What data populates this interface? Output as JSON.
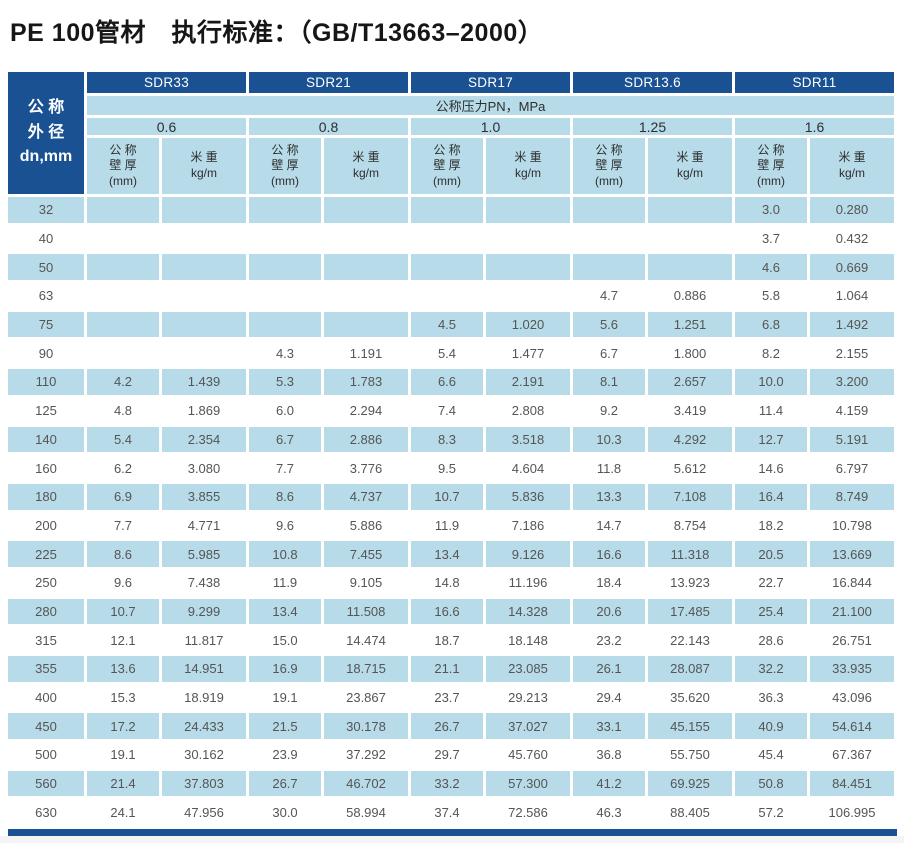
{
  "title": "PE 100管材　执行标准：（GB/T13663–2000）",
  "colors": {
    "header_blue": "#1a5193",
    "row_blue": "#b7dbe8",
    "number_gray": "#555555"
  },
  "table": {
    "corner": {
      "line1": "公 称",
      "line2": "外 径",
      "line3": "dn,mm"
    },
    "sdr": [
      "SDR33",
      "SDR21",
      "SDR17",
      "SDR13.6",
      "SDR11"
    ],
    "band": "公称压力PN，MPa",
    "pressures": [
      "0.6",
      "0.8",
      "1.0",
      "1.25",
      "1.6"
    ],
    "wall": {
      "l1": "公 称",
      "l2": "壁 厚",
      "l3": "(mm)"
    },
    "weight": {
      "l1": "米 重",
      "l2": "kg/m"
    },
    "rows": [
      {
        "dn": "32",
        "cells": [
          "",
          "",
          "",
          "",
          "",
          "",
          "",
          "",
          "3.0",
          "0.280"
        ]
      },
      {
        "dn": "40",
        "cells": [
          "",
          "",
          "",
          "",
          "",
          "",
          "",
          "",
          "3.7",
          "0.432"
        ]
      },
      {
        "dn": "50",
        "cells": [
          "",
          "",
          "",
          "",
          "",
          "",
          "",
          "",
          "4.6",
          "0.669"
        ]
      },
      {
        "dn": "63",
        "cells": [
          "",
          "",
          "",
          "",
          "",
          "",
          "4.7",
          "0.886",
          "5.8",
          "1.064"
        ]
      },
      {
        "dn": "75",
        "cells": [
          "",
          "",
          "",
          "",
          "4.5",
          "1.020",
          "5.6",
          "1.251",
          "6.8",
          "1.492"
        ]
      },
      {
        "dn": "90",
        "cells": [
          "",
          "",
          "4.3",
          "1.191",
          "5.4",
          "1.477",
          "6.7",
          "1.800",
          "8.2",
          "2.155"
        ]
      },
      {
        "dn": "110",
        "cells": [
          "4.2",
          "1.439",
          "5.3",
          "1.783",
          "6.6",
          "2.191",
          "8.1",
          "2.657",
          "10.0",
          "3.200"
        ]
      },
      {
        "dn": "125",
        "cells": [
          "4.8",
          "1.869",
          "6.0",
          "2.294",
          "7.4",
          "2.808",
          "9.2",
          "3.419",
          "11.4",
          "4.159"
        ]
      },
      {
        "dn": "140",
        "cells": [
          "5.4",
          "2.354",
          "6.7",
          "2.886",
          "8.3",
          "3.518",
          "10.3",
          "4.292",
          "12.7",
          "5.191"
        ]
      },
      {
        "dn": "160",
        "cells": [
          "6.2",
          "3.080",
          "7.7",
          "3.776",
          "9.5",
          "4.604",
          "11.8",
          "5.612",
          "14.6",
          "6.797"
        ]
      },
      {
        "dn": "180",
        "cells": [
          "6.9",
          "3.855",
          "8.6",
          "4.737",
          "10.7",
          "5.836",
          "13.3",
          "7.108",
          "16.4",
          "8.749"
        ]
      },
      {
        "dn": "200",
        "cells": [
          "7.7",
          "4.771",
          "9.6",
          "5.886",
          "11.9",
          "7.186",
          "14.7",
          "8.754",
          "18.2",
          "10.798"
        ]
      },
      {
        "dn": "225",
        "cells": [
          "8.6",
          "5.985",
          "10.8",
          "7.455",
          "13.4",
          "9.126",
          "16.6",
          "11.318",
          "20.5",
          "13.669"
        ]
      },
      {
        "dn": "250",
        "cells": [
          "9.6",
          "7.438",
          "11.9",
          "9.105",
          "14.8",
          "11.196",
          "18.4",
          "13.923",
          "22.7",
          "16.844"
        ]
      },
      {
        "dn": "280",
        "cells": [
          "10.7",
          "9.299",
          "13.4",
          "11.508",
          "16.6",
          "14.328",
          "20.6",
          "17.485",
          "25.4",
          "21.100"
        ]
      },
      {
        "dn": "315",
        "cells": [
          "12.1",
          "11.817",
          "15.0",
          "14.474",
          "18.7",
          "18.148",
          "23.2",
          "22.143",
          "28.6",
          "26.751"
        ]
      },
      {
        "dn": "355",
        "cells": [
          "13.6",
          "14.951",
          "16.9",
          "18.715",
          "21.1",
          "23.085",
          "26.1",
          "28.087",
          "32.2",
          "33.935"
        ]
      },
      {
        "dn": "400",
        "cells": [
          "15.3",
          "18.919",
          "19.1",
          "23.867",
          "23.7",
          "29.213",
          "29.4",
          "35.620",
          "36.3",
          "43.096"
        ]
      },
      {
        "dn": "450",
        "cells": [
          "17.2",
          "24.433",
          "21.5",
          "30.178",
          "26.7",
          "37.027",
          "33.1",
          "45.155",
          "40.9",
          "54.614"
        ]
      },
      {
        "dn": "500",
        "cells": [
          "19.1",
          "30.162",
          "23.9",
          "37.292",
          "29.7",
          "45.760",
          "36.8",
          "55.750",
          "45.4",
          "67.367"
        ]
      },
      {
        "dn": "560",
        "cells": [
          "21.4",
          "37.803",
          "26.7",
          "46.702",
          "33.2",
          "57.300",
          "41.2",
          "69.925",
          "50.8",
          "84.451"
        ]
      },
      {
        "dn": "630",
        "cells": [
          "24.1",
          "47.956",
          "30.0",
          "58.994",
          "37.4",
          "72.586",
          "46.3",
          "88.405",
          "57.2",
          "106.995"
        ]
      }
    ]
  }
}
